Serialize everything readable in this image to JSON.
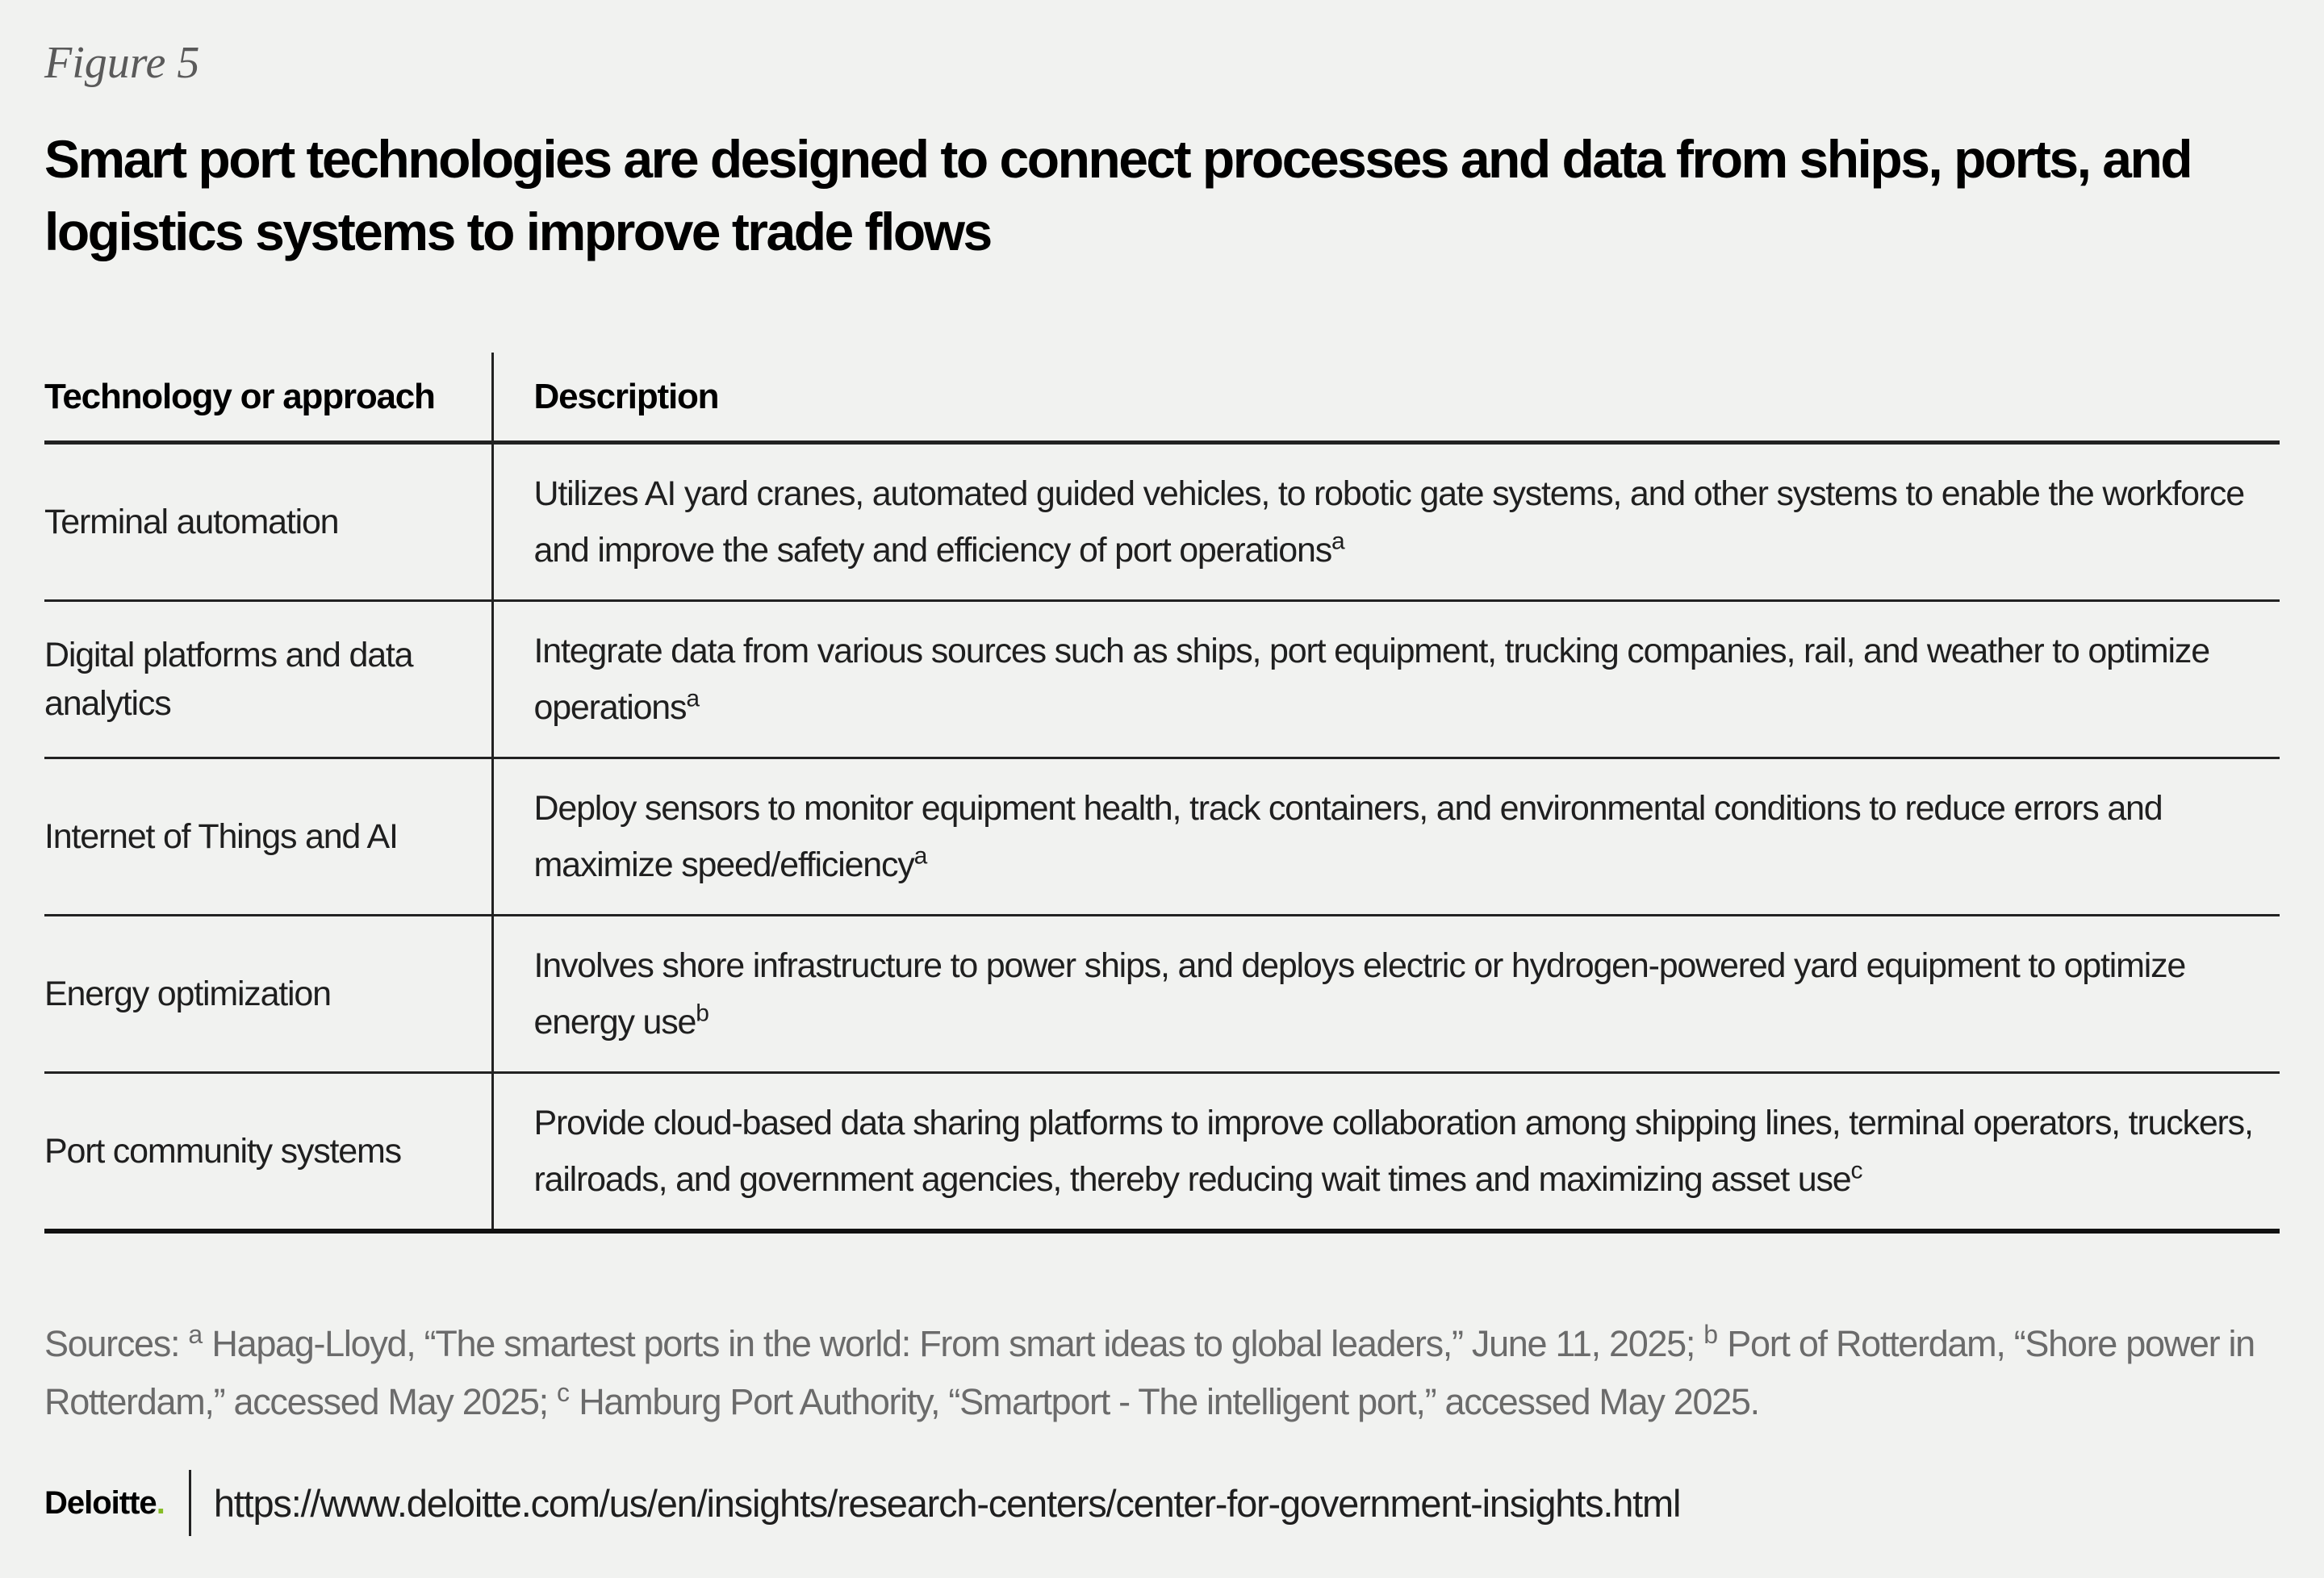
{
  "figure": {
    "label": "Figure 5",
    "title": "Smart port technologies are designed to connect processes and data from ships, ports, and logistics systems to improve trade flows"
  },
  "table": {
    "headers": [
      "Technology or approach",
      "Description"
    ],
    "rows": [
      {
        "technology": "Terminal automation",
        "description": "Utilizes AI yard cranes, automated guided vehicles, to robotic gate systems, and other systems to enable the workforce and improve the safety and efficiency of port operations",
        "note": "a"
      },
      {
        "technology": "Digital platforms and data analytics",
        "description": "Integrate data from various sources such as ships, port equipment, trucking companies, rail, and weather to optimize operations",
        "note": "a"
      },
      {
        "technology": "Internet of Things and AI",
        "description": "Deploy sensors to monitor equipment health, track containers, and environmental conditions to reduce errors and maximize speed/efficiency",
        "note": "a"
      },
      {
        "technology": "Energy optimization",
        "description": "Involves shore infrastructure to power ships, and deploys electric or hydrogen-powered yard equipment to optimize energy use",
        "note": "b"
      },
      {
        "technology": "Port community systems",
        "description": "Provide cloud-based data sharing platforms to improve collaboration among shipping lines, terminal operators, truckers, railroads, and government agencies, thereby reducing wait times and maximizing asset use",
        "note": "c"
      }
    ]
  },
  "sources": {
    "prefix": "Sources: ",
    "items": [
      {
        "mark": "a",
        "text": " Hapag-Lloyd, “The smartest ports in the world: From smart ideas to global leaders,” June 11, 2025; "
      },
      {
        "mark": "b",
        "text": " Port of Rotterdam, “Shore power in Rotterdam,” accessed May 2025; "
      },
      {
        "mark": "c",
        "text": " Hamburg Port Authority, “Smartport - The intelligent port,” accessed May 2025."
      }
    ]
  },
  "footer": {
    "logo": "Deloitte",
    "logo_dot": ".",
    "logo_dot_color": "#86bc25",
    "url": "https://www.deloitte.com/us/en/insights/research-centers/center-for-government-insights.html"
  }
}
